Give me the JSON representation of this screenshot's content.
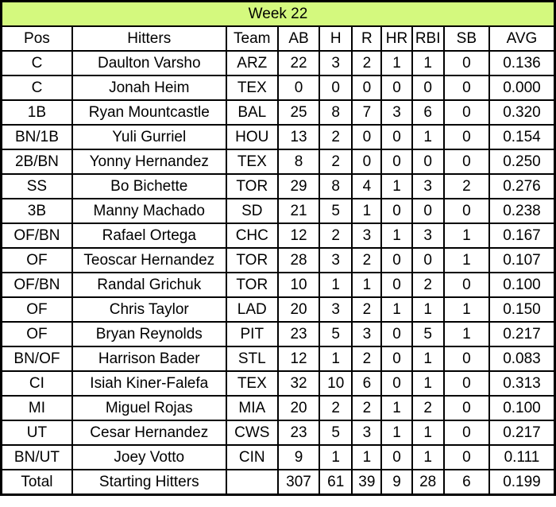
{
  "style": {
    "title_bg": "#d4f97e",
    "border_color": "#000000",
    "cell_bg": "#ffffff"
  },
  "chart_data": {
    "type": "table",
    "title": "Week 22",
    "columns": [
      "Pos",
      "Hitters",
      "Team",
      "AB",
      "H",
      "R",
      "HR",
      "RBI",
      "SB",
      "AVG"
    ],
    "rows": [
      [
        "C",
        "Daulton Varsho",
        "ARZ",
        "22",
        "3",
        "2",
        "1",
        "1",
        "0",
        "0.136"
      ],
      [
        "C",
        "Jonah Heim",
        "TEX",
        "0",
        "0",
        "0",
        "0",
        "0",
        "0",
        "0.000"
      ],
      [
        "1B",
        "Ryan Mountcastle",
        "BAL",
        "25",
        "8",
        "7",
        "3",
        "6",
        "0",
        "0.320"
      ],
      [
        "BN/1B",
        "Yuli Gurriel",
        "HOU",
        "13",
        "2",
        "0",
        "0",
        "1",
        "0",
        "0.154"
      ],
      [
        "2B/BN",
        "Yonny Hernandez",
        "TEX",
        "8",
        "2",
        "0",
        "0",
        "0",
        "0",
        "0.250"
      ],
      [
        "SS",
        "Bo Bichette",
        "TOR",
        "29",
        "8",
        "4",
        "1",
        "3",
        "2",
        "0.276"
      ],
      [
        "3B",
        "Manny Machado",
        "SD",
        "21",
        "5",
        "1",
        "0",
        "0",
        "0",
        "0.238"
      ],
      [
        "OF/BN",
        "Rafael Ortega",
        "CHC",
        "12",
        "2",
        "3",
        "1",
        "3",
        "1",
        "0.167"
      ],
      [
        "OF",
        "Teoscar Hernandez",
        "TOR",
        "28",
        "3",
        "2",
        "0",
        "0",
        "1",
        "0.107"
      ],
      [
        "OF/BN",
        "Randal Grichuk",
        "TOR",
        "10",
        "1",
        "1",
        "0",
        "2",
        "0",
        "0.100"
      ],
      [
        "OF",
        "Chris Taylor",
        "LAD",
        "20",
        "3",
        "2",
        "1",
        "1",
        "1",
        "0.150"
      ],
      [
        "OF",
        "Bryan Reynolds",
        "PIT",
        "23",
        "5",
        "3",
        "0",
        "5",
        "1",
        "0.217"
      ],
      [
        "BN/OF",
        "Harrison Bader",
        "STL",
        "12",
        "1",
        "2",
        "0",
        "1",
        "0",
        "0.083"
      ],
      [
        "CI",
        "Isiah Kiner-Falefa",
        "TEX",
        "32",
        "10",
        "6",
        "0",
        "1",
        "0",
        "0.313"
      ],
      [
        "MI",
        "Miguel Rojas",
        "MIA",
        "20",
        "2",
        "2",
        "1",
        "2",
        "0",
        "0.100"
      ],
      [
        "UT",
        "Cesar Hernandez",
        "CWS",
        "23",
        "5",
        "3",
        "1",
        "1",
        "0",
        "0.217"
      ],
      [
        "BN/UT",
        "Joey Votto",
        "CIN",
        "9",
        "1",
        "1",
        "0",
        "1",
        "0",
        "0.111"
      ]
    ],
    "total_row": [
      "Total",
      "Starting Hitters",
      "",
      "307",
      "61",
      "39",
      "9",
      "28",
      "6",
      "0.199"
    ]
  }
}
